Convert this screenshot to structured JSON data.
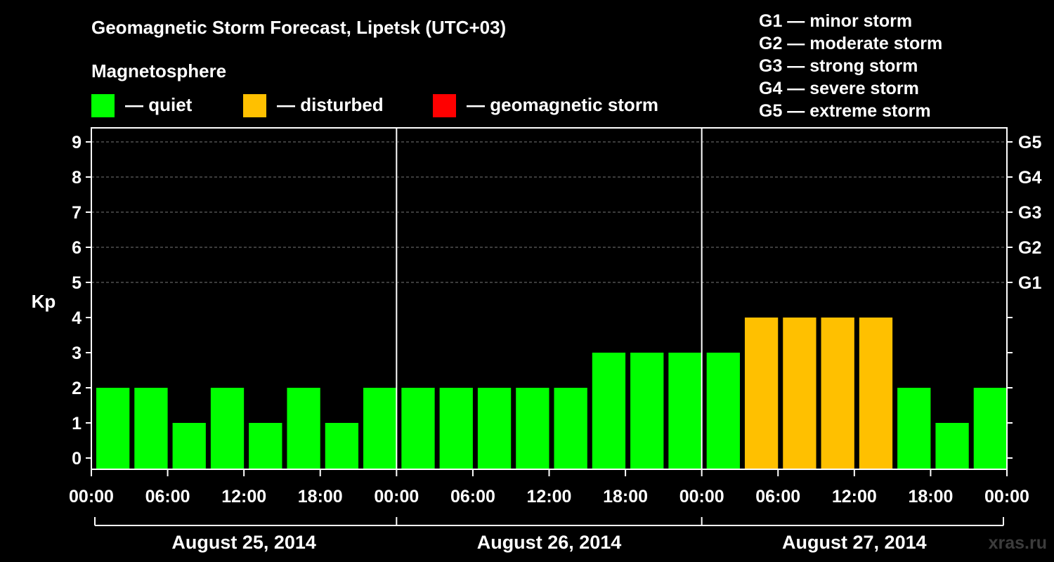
{
  "header": {
    "title": "Geomagnetic Storm Forecast, Lipetsk (UTC+03)",
    "subtitle": "Magnetosphere"
  },
  "legend": [
    {
      "label": "— quiet",
      "color": "#00ff00"
    },
    {
      "label": "— disturbed",
      "color": "#ffc000"
    },
    {
      "label": "— geomagnetic storm",
      "color": "#ff0000"
    }
  ],
  "storm_scale": [
    "G1 — minor storm",
    "G2 — moderate storm",
    "G3 — strong storm",
    "G4 — severe storm",
    "G5 — extreme storm"
  ],
  "watermark": "xras.ru",
  "chart_data": {
    "type": "bar",
    "title": "Geomagnetic Storm Forecast, Lipetsk (UTC+03)",
    "ylabel": "Kp",
    "ylim": [
      0,
      9
    ],
    "yticks": [
      "0",
      "1",
      "2",
      "3",
      "4",
      "5",
      "6",
      "7",
      "8",
      "9"
    ],
    "right_ticks": [
      {
        "kp": 5,
        "label": "G1"
      },
      {
        "kp": 6,
        "label": "G2"
      },
      {
        "kp": 7,
        "label": "G3"
      },
      {
        "kp": 8,
        "label": "G4"
      },
      {
        "kp": 9,
        "label": "G5"
      }
    ],
    "xtick_labels": [
      "00:00",
      "06:00",
      "12:00",
      "18:00",
      "00:00",
      "06:00",
      "12:00",
      "18:00",
      "00:00",
      "06:00",
      "12:00",
      "18:00",
      "00:00"
    ],
    "days": [
      "August 25, 2014",
      "August 26, 2014",
      "August 27, 2014"
    ],
    "interval_hours": 3,
    "values": [
      2,
      2,
      1,
      2,
      1,
      2,
      1,
      2,
      2,
      2,
      2,
      2,
      2,
      3,
      3,
      3,
      3,
      4,
      4,
      4,
      4,
      2,
      1,
      2
    ],
    "thresholds": {
      "disturbed": 4,
      "storm": 5
    },
    "colors": {
      "quiet": "#00ff00",
      "disturbed": "#ffc000",
      "storm": "#ff0000"
    },
    "grid": true
  }
}
